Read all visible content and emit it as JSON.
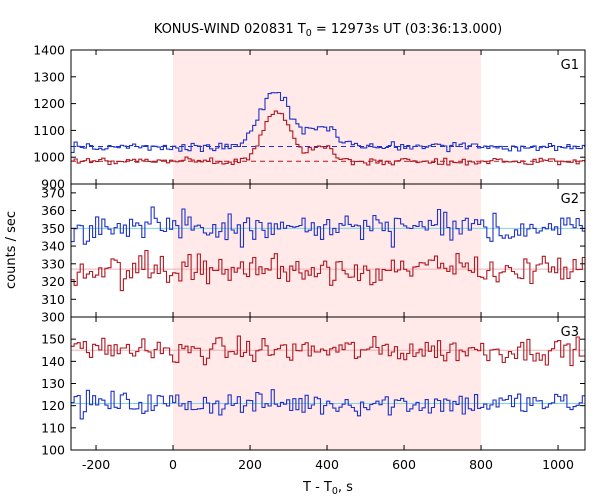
{
  "chart_data": {
    "type": "line",
    "title": {
      "prefix": "KONUS-WIND 020831 T",
      "sub": "0",
      "suffix": " = 12973s UT (03:36:13.000)"
    },
    "xlabel": {
      "prefix": "T - T",
      "sub": "0",
      "suffix": ", s"
    },
    "ylabel": "counts / sec",
    "xlim": [
      -265,
      1070
    ],
    "xticks": [
      -200,
      0,
      200,
      400,
      600,
      800,
      1000
    ],
    "xtick_labels": [
      "-200",
      "0",
      "200",
      "400",
      "600",
      "800",
      "1000"
    ],
    "shaded_region": {
      "x": [
        0,
        800
      ],
      "color": "#ffe9e9"
    },
    "colors": {
      "blue": "#1f33c8",
      "red": "#b01822",
      "fit": "#7fd3e3",
      "pink": "#f2b0b0"
    },
    "panels": [
      {
        "label": "G1",
        "ylim": [
          900,
          1400
        ],
        "yticks": [
          900,
          1000,
          1100,
          1200,
          1300,
          1400
        ],
        "ytick_labels": [
          "900",
          "1000",
          "1100",
          "1200",
          "1300",
          "1400"
        ],
        "series": [
          {
            "color": "blue",
            "bin_width": 8,
            "background": 1040,
            "noise": 12,
            "pulses": [
              {
                "center": 265,
                "amplitude": 200,
                "width": 55
              },
              {
                "center": 390,
                "amplitude": 75,
                "width": 45
              }
            ]
          },
          {
            "color": "red",
            "bin_width": 8,
            "background": 985,
            "noise": 10,
            "pulses": [
              {
                "center": 270,
                "amplitude": 185,
                "width": 50
              },
              {
                "center": 385,
                "amplitude": 55,
                "width": 40
              }
            ]
          }
        ],
        "background_lines": [
          {
            "color": "blue",
            "value": 1040,
            "style": "dashed"
          },
          {
            "color": "red",
            "value": 985,
            "style": "dashed"
          }
        ]
      },
      {
        "label": "G2",
        "ylim": [
          300,
          375
        ],
        "yticks": [
          300,
          310,
          320,
          330,
          340,
          350,
          360,
          370
        ],
        "ytick_labels": [
          "300",
          "310",
          "320",
          "330",
          "340",
          "350",
          "360",
          "370"
        ],
        "series": [
          {
            "color": "blue",
            "bin_width": 8,
            "background": 350,
            "noise": 6,
            "pulses": []
          },
          {
            "color": "red",
            "bin_width": 8,
            "background": 327,
            "noise": 6,
            "pulses": []
          }
        ],
        "background_lines": [
          {
            "color": "fit",
            "value": 350,
            "style": "solid"
          },
          {
            "color": "pink",
            "value": 327,
            "style": "solid"
          }
        ]
      },
      {
        "label": "G3",
        "ylim": [
          100,
          160
        ],
        "yticks": [
          100,
          110,
          120,
          130,
          140,
          150
        ],
        "ytick_labels": [
          "100",
          "110",
          "120",
          "130",
          "140",
          "150"
        ],
        "series": [
          {
            "color": "red",
            "bin_width": 8,
            "background": 145,
            "noise": 4,
            "pulses": []
          },
          {
            "color": "blue",
            "bin_width": 8,
            "background": 121,
            "noise": 4,
            "pulses": []
          }
        ],
        "background_lines": [
          {
            "color": "pink",
            "value": 145,
            "style": "solid"
          },
          {
            "color": "fit",
            "value": 121,
            "style": "solid"
          }
        ]
      }
    ]
  }
}
